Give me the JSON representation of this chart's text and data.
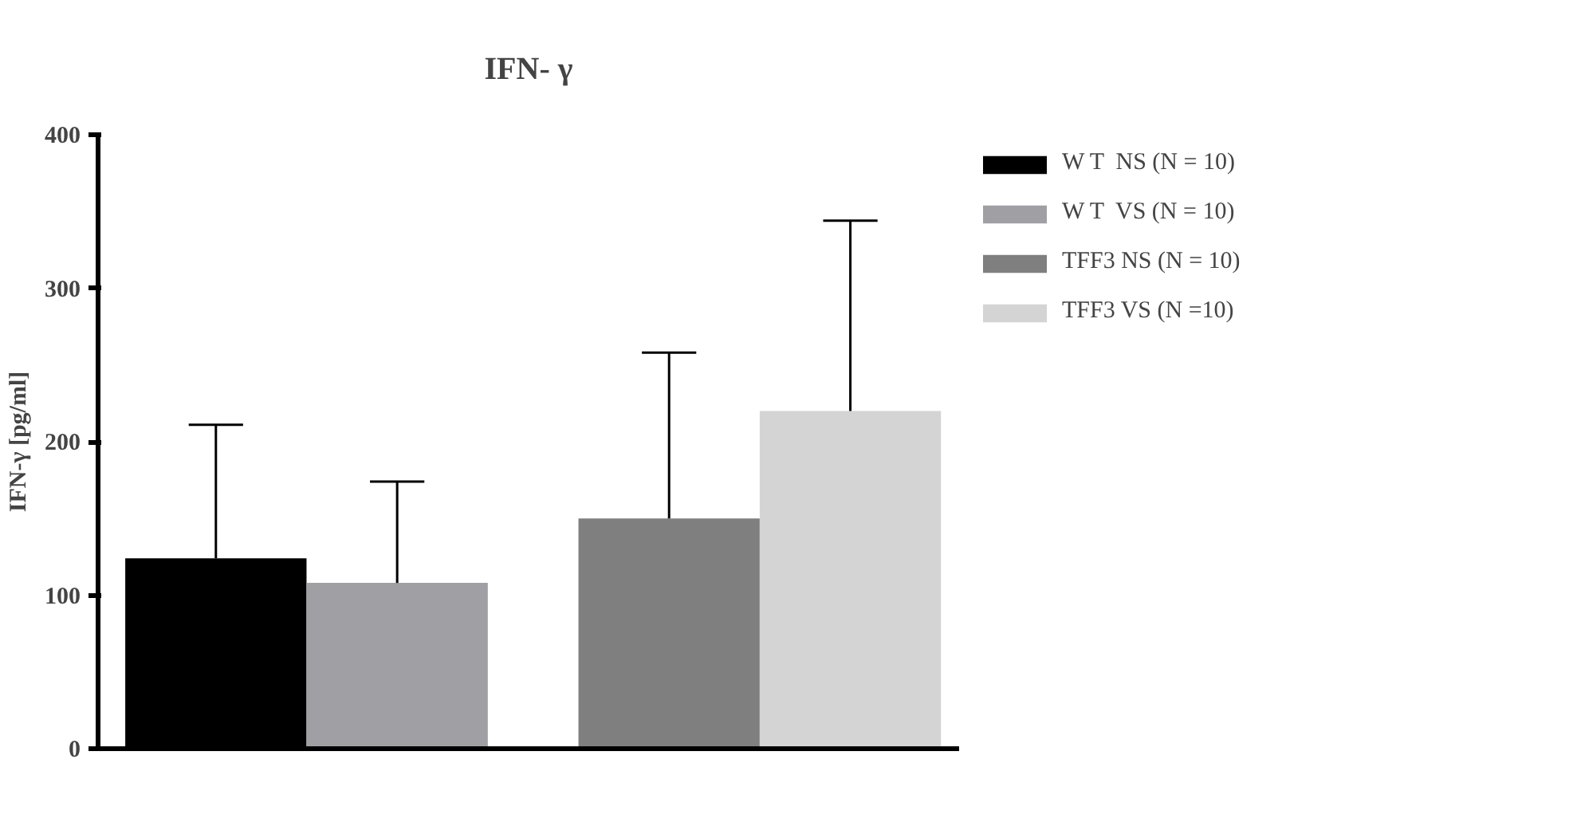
{
  "chart_data": {
    "type": "bar",
    "title": "IFN- γ",
    "ylabel": "IFN-γ [pg/ml]",
    "categories": [
      null,
      null
    ],
    "series": [
      {
        "name": "W T  NS (N = 10)",
        "color": "#000000",
        "values": [
          124,
          null
        ],
        "errors": [
          [
            124,
            211
          ],
          null
        ]
      },
      {
        "name": "W T  VS (N = 10)",
        "color": "#a09fa4",
        "values": [
          108,
          null
        ],
        "errors": [
          [
            108,
            174
          ],
          null
        ]
      },
      {
        "name": "TFF3 NS (N = 10)",
        "color": "#7f7f7f",
        "values": [
          null,
          150
        ],
        "errors": [
          null,
          [
            150,
            258
          ]
        ]
      },
      {
        "name": "TFF3 VS (N =10)",
        "color": "#d4d4d4",
        "values": [
          null,
          220
        ],
        "errors": [
          null,
          [
            220,
            344
          ]
        ]
      }
    ],
    "ylim": [
      0,
      400
    ],
    "yticks": [
      0,
      100,
      200,
      300,
      400
    ],
    "grid": false,
    "legend": "top right",
    "tick_labels": "y"
  }
}
